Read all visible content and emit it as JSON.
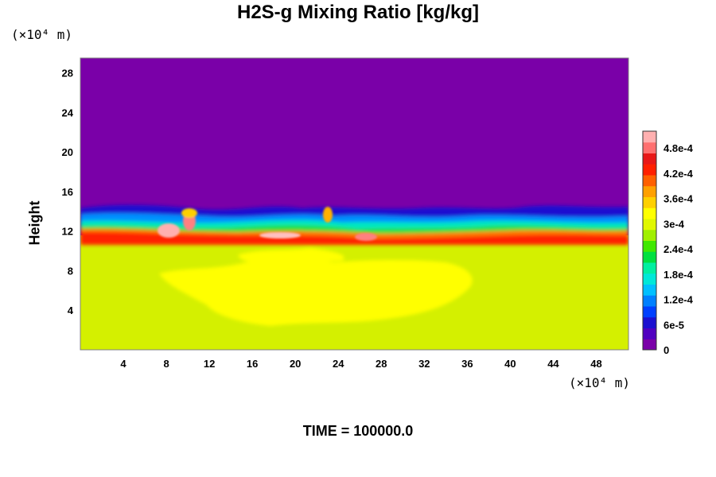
{
  "chart_data": {
    "type": "heatmap",
    "title": "H2S-g Mixing Ratio [kg/kg]",
    "ylabel": "Height",
    "xunit": "(×10⁴ m)",
    "yunit": "(×10⁴ m)",
    "footer": "TIME = 100000.0",
    "xlim": [
      0,
      51
    ],
    "ylim": [
      0,
      29.5
    ],
    "x_ticks": [
      "4",
      "8",
      "12",
      "16",
      "20",
      "24",
      "28",
      "32",
      "36",
      "40",
      "44",
      "48"
    ],
    "y_ticks": [
      "4",
      "8",
      "12",
      "16",
      "20",
      "24",
      "28"
    ],
    "colorbar": {
      "min": 0,
      "max": 0.00052,
      "ticks": [
        "0",
        "6e-5",
        "1.2e-4",
        "1.8e-4",
        "2.4e-4",
        "3e-4",
        "3.6e-4",
        "4.2e-4",
        "4.8e-4"
      ],
      "colors": [
        "#7a00a8",
        "#5000c0",
        "#1c10d0",
        "#0040ff",
        "#0080ff",
        "#00c0ff",
        "#00e8d8",
        "#00f0a0",
        "#00e040",
        "#40e800",
        "#a0f000",
        "#e0f800",
        "#ffff00",
        "#ffd000",
        "#ffa000",
        "#ff6000",
        "#ff2000",
        "#e81818",
        "#ff7070",
        "#ffb0b0"
      ]
    },
    "regions": [
      {
        "name": "upper",
        "y_range": [
          14,
          29.5
        ],
        "value": 0
      },
      {
        "name": "transition",
        "y_range": [
          11,
          14
        ],
        "value_range": [
          0,
          0.0005
        ]
      },
      {
        "name": "lower",
        "y_range": [
          0,
          11
        ],
        "value": 0.00035
      }
    ]
  }
}
